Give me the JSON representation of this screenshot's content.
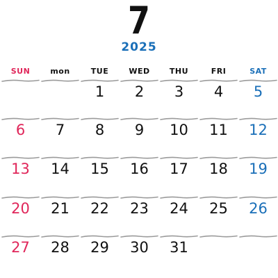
{
  "calendar": {
    "month": "7",
    "year": "2025",
    "weekday_headers": [
      "SUN",
      "mon",
      "TUE",
      "WED",
      "THU",
      "FRI",
      "SAT"
    ],
    "weeks": [
      [
        "",
        "",
        "1",
        "2",
        "3",
        "4",
        "5"
      ],
      [
        "6",
        "7",
        "8",
        "9",
        "10",
        "11",
        "12"
      ],
      [
        "13",
        "14",
        "15",
        "16",
        "17",
        "18",
        "19"
      ],
      [
        "20",
        "21",
        "22",
        "23",
        "24",
        "25",
        "26"
      ],
      [
        "27",
        "28",
        "29",
        "30",
        "31",
        "",
        ""
      ]
    ]
  },
  "colors": {
    "sunday": "#e0265a",
    "saturday": "#1a6fb8",
    "weekday": "#111111",
    "year_text": "#1a6fb8",
    "year_accent": "#3bb39a",
    "rule": "#9a9a9a"
  }
}
